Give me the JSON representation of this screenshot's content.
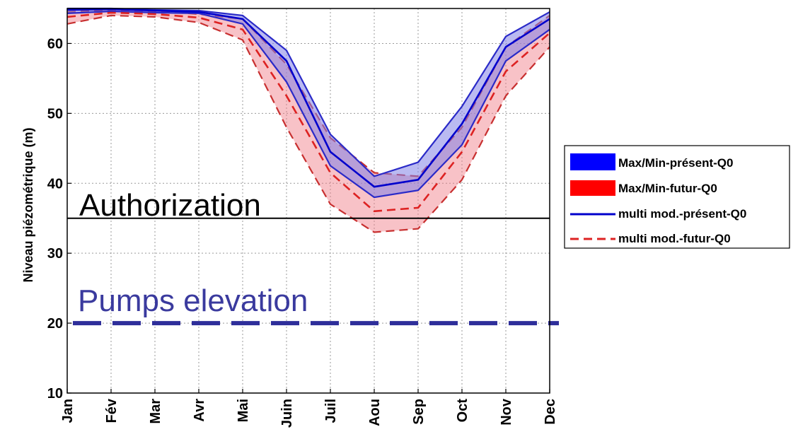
{
  "chart_data": {
    "type": "line",
    "title": "",
    "xlabel": "",
    "ylabel": "Niveau piézométrique (m)",
    "categories": [
      "Jan",
      "Fév",
      "Mar",
      "Avr",
      "Mai",
      "Juin",
      "Juil",
      "Aou",
      "Sep",
      "Oct",
      "Nov",
      "Dec"
    ],
    "ylim": [
      10,
      65
    ],
    "yticks": [
      "10",
      "20",
      "30",
      "40",
      "50",
      "60"
    ],
    "grid": true,
    "legend_position": "right",
    "series": [
      {
        "name": "Max/Min-présent-Q0",
        "kind": "band",
        "color": "#0000ff",
        "upper": [
          65.0,
          65.0,
          64.8,
          64.7,
          64.0,
          59.0,
          47.0,
          41.0,
          43.0,
          51.0,
          61.0,
          64.5
        ],
        "lower": [
          64.3,
          64.6,
          64.4,
          64.3,
          62.8,
          54.5,
          42.5,
          38.0,
          39.0,
          45.5,
          57.5,
          62.0
        ]
      },
      {
        "name": "Max/Min-futur-Q0",
        "kind": "band",
        "color": "#ff0000",
        "upper": [
          64.5,
          64.8,
          64.6,
          64.2,
          63.5,
          57.0,
          46.5,
          41.5,
          41.0,
          48.0,
          59.5,
          64.0
        ],
        "lower": [
          62.8,
          64.0,
          63.8,
          63.0,
          60.5,
          48.0,
          37.0,
          33.0,
          33.5,
          40.5,
          52.5,
          59.5
        ]
      },
      {
        "name": "multi mod.-présent-Q0",
        "kind": "line",
        "style": "solid",
        "color": "#0000cc",
        "values": [
          64.8,
          64.9,
          64.7,
          64.5,
          63.5,
          57.5,
          44.5,
          39.5,
          40.5,
          48.5,
          59.5,
          63.5
        ]
      },
      {
        "name": "multi mod.-futur-Q0",
        "kind": "line",
        "style": "dashed",
        "color": "#dd2222",
        "values": [
          63.8,
          64.4,
          64.2,
          63.7,
          62.0,
          52.5,
          41.5,
          36.0,
          36.5,
          44.5,
          56.0,
          61.5
        ]
      }
    ],
    "reference_lines": [
      {
        "label": "Authorization",
        "value": 35.0,
        "style": "solid",
        "color": "#000000"
      },
      {
        "label": "Pumps elevation",
        "value": 20.0,
        "style": "dashed",
        "color": "#2e2e9a"
      }
    ]
  }
}
